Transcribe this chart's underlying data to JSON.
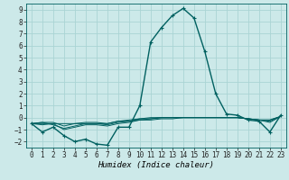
{
  "title": "",
  "xlabel": "Humidex (Indice chaleur)",
  "xlim": [
    -0.5,
    23.5
  ],
  "ylim": [
    -2.5,
    9.5
  ],
  "xticks": [
    0,
    1,
    2,
    3,
    4,
    5,
    6,
    7,
    8,
    9,
    10,
    11,
    12,
    13,
    14,
    15,
    16,
    17,
    18,
    19,
    20,
    21,
    22,
    23
  ],
  "yticks": [
    -2,
    -1,
    0,
    1,
    2,
    3,
    4,
    5,
    6,
    7,
    8,
    9
  ],
  "bg_color": "#cce9e9",
  "grid_color": "#aad4d4",
  "line_color": "#006060",
  "lines": [
    {
      "x": [
        0,
        1,
        2,
        3,
        4,
        5,
        6,
        7,
        8,
        9,
        10,
        11,
        12,
        13,
        14,
        15,
        16,
        17,
        18,
        19,
        20,
        21,
        22,
        23
      ],
      "y": [
        -0.5,
        -1.2,
        -0.8,
        -1.5,
        -2.0,
        -1.8,
        -2.2,
        -2.3,
        -0.8,
        -0.8,
        1.0,
        6.3,
        7.5,
        8.5,
        9.1,
        8.3,
        5.5,
        2.0,
        0.3,
        0.2,
        -0.2,
        -0.3,
        -1.2,
        0.2
      ],
      "marker": true,
      "lw": 1.0
    },
    {
      "x": [
        0,
        1,
        2,
        3,
        4,
        5,
        6,
        7,
        8,
        9,
        10,
        11,
        12,
        13,
        14,
        15,
        16,
        17,
        18,
        19,
        20,
        21,
        22,
        23
      ],
      "y": [
        -0.5,
        -0.5,
        -0.5,
        -0.5,
        -0.5,
        -0.5,
        -0.5,
        -0.5,
        -0.3,
        -0.3,
        -0.2,
        -0.2,
        -0.1,
        -0.1,
        0.0,
        0.0,
        0.0,
        0.0,
        0.0,
        0.0,
        -0.1,
        -0.2,
        -0.2,
        0.1
      ],
      "marker": false,
      "lw": 0.7
    },
    {
      "x": [
        0,
        1,
        2,
        3,
        4,
        5,
        6,
        7,
        8,
        9,
        10,
        11,
        12,
        13,
        14,
        15,
        16,
        17,
        18,
        19,
        20,
        21,
        22,
        23
      ],
      "y": [
        -0.5,
        -0.4,
        -0.4,
        -0.7,
        -0.5,
        -0.4,
        -0.4,
        -0.5,
        -0.3,
        -0.2,
        -0.1,
        -0.1,
        0.0,
        0.0,
        0.0,
        0.0,
        0.0,
        0.0,
        0.0,
        0.0,
        -0.1,
        -0.2,
        -0.2,
        0.1
      ],
      "marker": false,
      "lw": 0.7
    },
    {
      "x": [
        0,
        1,
        2,
        3,
        4,
        5,
        6,
        7,
        8,
        9,
        10,
        11,
        12,
        13,
        14,
        15,
        16,
        17,
        18,
        19,
        20,
        21,
        22,
        23
      ],
      "y": [
        -0.5,
        -0.4,
        -0.6,
        -0.9,
        -0.7,
        -0.5,
        -0.5,
        -0.6,
        -0.4,
        -0.3,
        -0.1,
        0.0,
        0.0,
        0.0,
        0.0,
        0.0,
        0.0,
        0.0,
        0.0,
        0.0,
        -0.1,
        -0.2,
        -0.3,
        0.1
      ],
      "marker": false,
      "lw": 0.7
    },
    {
      "x": [
        0,
        1,
        2,
        3,
        4,
        5,
        6,
        7,
        8,
        9,
        10,
        11,
        12,
        13,
        14,
        15,
        16,
        17,
        18,
        19,
        20,
        21,
        22,
        23
      ],
      "y": [
        -0.5,
        -0.6,
        -0.5,
        -1.0,
        -0.8,
        -0.6,
        -0.6,
        -0.7,
        -0.5,
        -0.4,
        -0.2,
        -0.1,
        0.0,
        0.0,
        0.0,
        0.0,
        0.0,
        0.0,
        0.0,
        0.0,
        -0.1,
        -0.2,
        -0.4,
        0.1
      ],
      "marker": false,
      "lw": 0.7
    }
  ],
  "tick_fontsize": 5.5,
  "xlabel_fontsize": 6.5
}
